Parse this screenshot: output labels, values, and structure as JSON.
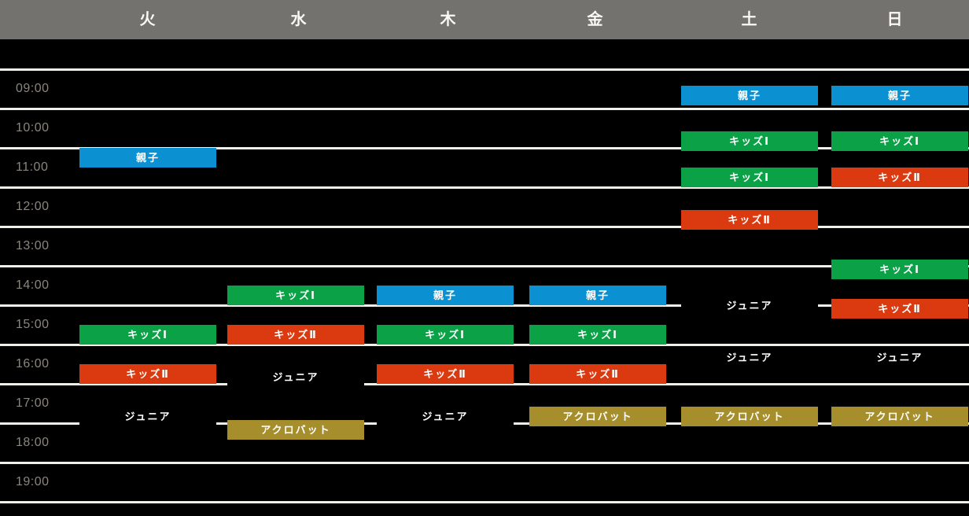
{
  "colors": {
    "background": "#000000",
    "header_bg": "#74726F",
    "header_text": "#FAF8F4",
    "grid_line": "#F2EFE9",
    "time_label_text": "#8B867E",
    "event_text": "#FFFFFF"
  },
  "class_types": {
    "oyako": {
      "label": "親子",
      "color": "#0B90D2"
    },
    "kids1": {
      "label": "キッズⅠ",
      "color": "#0AA147"
    },
    "kids2": {
      "label": "キッズⅡ",
      "color": "#DB3A10"
    },
    "junior": {
      "label": "ジュニア",
      "color": "#000000"
    },
    "acrobat": {
      "label": "アクロバット",
      "color": "#A58E2B"
    }
  },
  "time_axis": {
    "tick_labels": [
      "09:00",
      "10:00",
      "11:00",
      "12:00",
      "13:00",
      "14:00",
      "15:00",
      "16:00",
      "17:00",
      "18:00",
      "19:00"
    ],
    "start": "09:00",
    "end": "19:00",
    "direction": "down"
  },
  "chart_data": {
    "type": "table",
    "x_categories": [
      "火",
      "水",
      "木",
      "金",
      "土",
      "日"
    ],
    "y_axis_ticks": [
      "09:00",
      "10:00",
      "11:00",
      "12:00",
      "13:00",
      "14:00",
      "15:00",
      "16:00",
      "17:00",
      "18:00",
      "19:00"
    ],
    "grid": true,
    "notes": "weekly lesson timetable; start/end times estimated from gridlines; each block spans ~30 minutes",
    "events": [
      {
        "day_index": 0,
        "day": "火",
        "type": "oyako",
        "label": "親子",
        "start": "11:00",
        "end": "11:30"
      },
      {
        "day_index": 0,
        "day": "火",
        "type": "kids1",
        "label": "キッズⅠ",
        "start": "15:30",
        "end": "16:00"
      },
      {
        "day_index": 0,
        "day": "火",
        "type": "kids2",
        "label": "キッズⅡ",
        "start": "16:30",
        "end": "17:00"
      },
      {
        "day_index": 0,
        "day": "火",
        "type": "junior",
        "label": "ジュニア",
        "start": "17:35",
        "end": "18:05"
      },
      {
        "day_index": 1,
        "day": "水",
        "type": "kids1",
        "label": "キッズⅠ",
        "start": "14:30",
        "end": "15:00"
      },
      {
        "day_index": 1,
        "day": "水",
        "type": "kids2",
        "label": "キッズⅡ",
        "start": "15:30",
        "end": "16:00"
      },
      {
        "day_index": 1,
        "day": "水",
        "type": "junior",
        "label": "ジュニア",
        "start": "16:35",
        "end": "17:05"
      },
      {
        "day_index": 1,
        "day": "水",
        "type": "acrobat",
        "label": "アクロバット",
        "start": "17:55",
        "end": "18:25"
      },
      {
        "day_index": 2,
        "day": "木",
        "type": "oyako",
        "label": "親子",
        "start": "14:30",
        "end": "15:00"
      },
      {
        "day_index": 2,
        "day": "木",
        "type": "kids1",
        "label": "キッズⅠ",
        "start": "15:30",
        "end": "16:00"
      },
      {
        "day_index": 2,
        "day": "木",
        "type": "kids2",
        "label": "キッズⅡ",
        "start": "16:30",
        "end": "17:00"
      },
      {
        "day_index": 2,
        "day": "木",
        "type": "junior",
        "label": "ジュニア",
        "start": "17:35",
        "end": "18:05"
      },
      {
        "day_index": 3,
        "day": "金",
        "type": "oyako",
        "label": "親子",
        "start": "14:30",
        "end": "15:00"
      },
      {
        "day_index": 3,
        "day": "金",
        "type": "kids1",
        "label": "キッズⅠ",
        "start": "15:30",
        "end": "16:00"
      },
      {
        "day_index": 3,
        "day": "金",
        "type": "kids2",
        "label": "キッズⅡ",
        "start": "16:30",
        "end": "17:00"
      },
      {
        "day_index": 3,
        "day": "金",
        "type": "acrobat",
        "label": "アクロバット",
        "start": "17:35",
        "end": "18:05"
      },
      {
        "day_index": 4,
        "day": "土",
        "type": "oyako",
        "label": "親子",
        "start": "09:25",
        "end": "09:55"
      },
      {
        "day_index": 4,
        "day": "土",
        "type": "kids1",
        "label": "キッズⅠ",
        "start": "10:35",
        "end": "11:05"
      },
      {
        "day_index": 4,
        "day": "土",
        "type": "kids1",
        "label": "キッズⅠ",
        "start": "11:30",
        "end": "12:00"
      },
      {
        "day_index": 4,
        "day": "土",
        "type": "kids2",
        "label": "キッズⅡ",
        "start": "12:35",
        "end": "13:05"
      },
      {
        "day_index": 4,
        "day": "土",
        "type": "junior",
        "label": "ジュニア",
        "start": "14:45",
        "end": "15:15"
      },
      {
        "day_index": 4,
        "day": "土",
        "type": "junior",
        "label": "ジュニア",
        "start": "16:05",
        "end": "16:35"
      },
      {
        "day_index": 4,
        "day": "土",
        "type": "acrobat",
        "label": "アクロバット",
        "start": "17:35",
        "end": "18:05"
      },
      {
        "day_index": 5,
        "day": "日",
        "type": "oyako",
        "label": "親子",
        "start": "09:25",
        "end": "09:55"
      },
      {
        "day_index": 5,
        "day": "日",
        "type": "kids1",
        "label": "キッズⅠ",
        "start": "10:35",
        "end": "11:05"
      },
      {
        "day_index": 5,
        "day": "日",
        "type": "kids2",
        "label": "キッズⅡ",
        "start": "11:30",
        "end": "12:00"
      },
      {
        "day_index": 5,
        "day": "日",
        "type": "kids1",
        "label": "キッズⅠ",
        "start": "13:50",
        "end": "14:20"
      },
      {
        "day_index": 5,
        "day": "日",
        "type": "kids2",
        "label": "キッズⅡ",
        "start": "14:50",
        "end": "15:20"
      },
      {
        "day_index": 5,
        "day": "日",
        "type": "junior",
        "label": "ジュニア",
        "start": "16:05",
        "end": "16:35"
      },
      {
        "day_index": 5,
        "day": "日",
        "type": "acrobat",
        "label": "アクロバット",
        "start": "17:35",
        "end": "18:05"
      }
    ]
  }
}
